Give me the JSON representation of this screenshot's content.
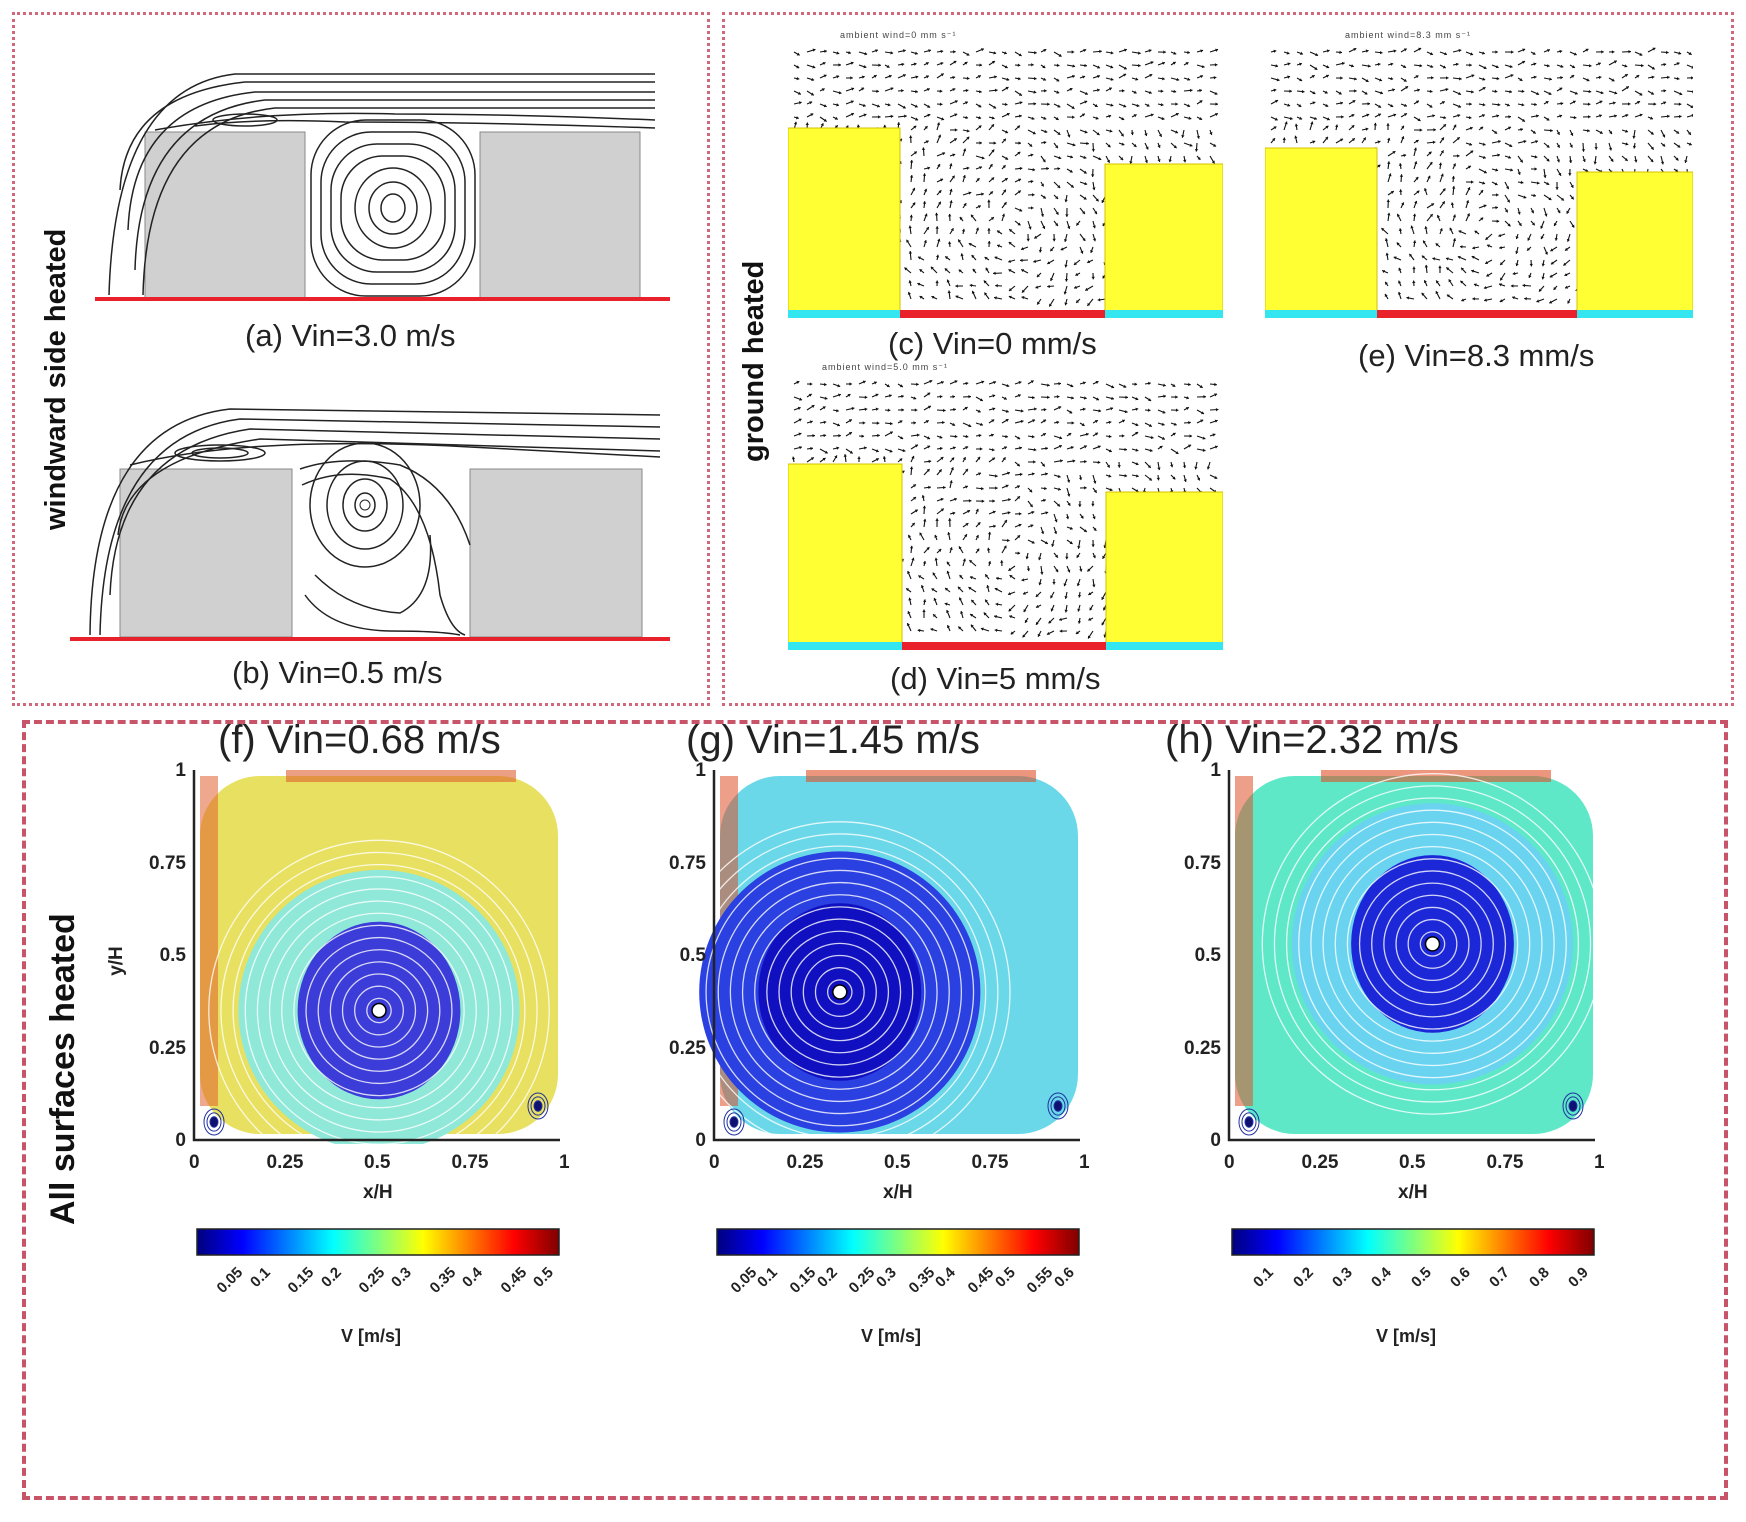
{
  "top_left": {
    "side_label": "windward side heated",
    "caption_a": "(a) Vin=3.0 m/s",
    "caption_b": "(b) Vin=0.5 m/s"
  },
  "top_right": {
    "side_label": "ground heated",
    "caption_c": "(c) Vin=0 mm/s",
    "caption_d": "(d) Vin=5 mm/s",
    "caption_e": "(e) Vin=8.3 mm/s",
    "tiny_c": "ambient wind=0 mm s⁻¹",
    "tiny_d": "ambient wind=5.0 mm s⁻¹",
    "tiny_e": "ambient wind=8.3 mm s⁻¹"
  },
  "bottom": {
    "side_label": "All surfaces heated",
    "titles": [
      "(f) Vin=0.68 m/s",
      "(g) Vin=1.45 m/s",
      "(h) Vin=2.32 m/s"
    ],
    "y_label": "y/H",
    "x_label": "x/H",
    "y_ticks": [
      "1",
      "0.75",
      "0.5",
      "0.25",
      "0"
    ],
    "x_ticks": [
      "0",
      "0.25",
      "0.5",
      "0.75",
      "1"
    ],
    "colorbar_units": "V [m/s]",
    "colorbars": [
      [
        "0.05",
        "0.1",
        "0.15",
        "0.2",
        "0.25",
        "0.3",
        "0.35",
        "0.4",
        "0.45",
        "0.5"
      ],
      [
        "0.05",
        "0.1",
        "0.15",
        "0.2",
        "0.25",
        "0.3",
        "0.35",
        "0.4",
        "0.45",
        "0.5",
        "0.55",
        "0.6"
      ],
      [
        "0.1",
        "0.2",
        "0.3",
        "0.4",
        "0.5",
        "0.6",
        "0.7",
        "0.8",
        "0.9"
      ]
    ]
  },
  "colors": {
    "frame": "#d0677a",
    "building_gray": "#d0d0d0",
    "building_yellow": "#ffff33",
    "ground_red": "#e8212b",
    "ground_cyan": "#33e6f0"
  }
}
